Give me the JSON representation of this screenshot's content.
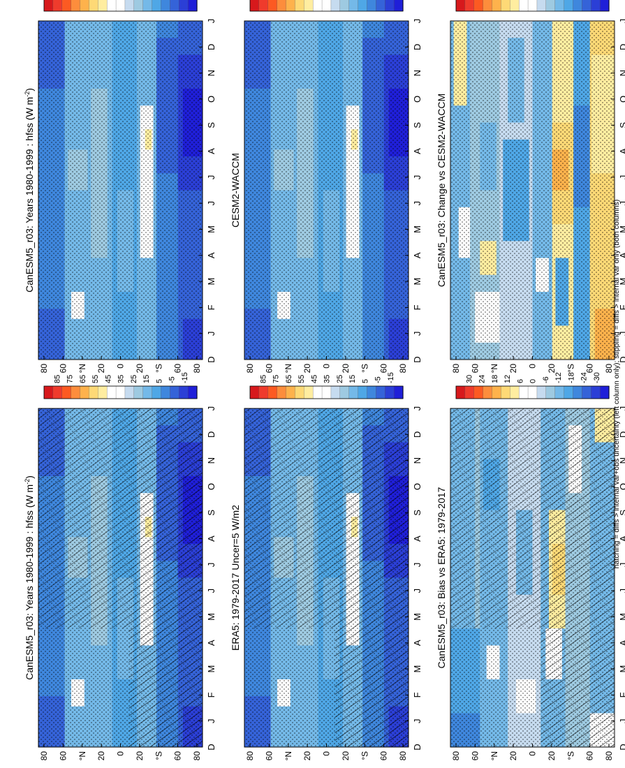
{
  "footnote": "hatching = diffs > internal var+obs uncertainty (left column only); stippling = diffs > internal var only (both columns)",
  "chart_data": [
    {
      "type": "heatmap",
      "title": "CanESM5_r03: Years 1980-1999 : hfss (W m",
      "title_sup": "-2",
      "title_tail": ")",
      "months": [
        "D",
        "J",
        "F",
        "M",
        "A",
        "M",
        "J",
        "J",
        "A",
        "S",
        "O",
        "N",
        "D",
        "J"
      ],
      "lat_labels": [
        "80",
        "60",
        "°N",
        "20",
        "0",
        "20",
        "°S",
        "60",
        "80"
      ],
      "colorbar_labels": [
        "85",
        "75",
        "65",
        "55",
        "45",
        "35",
        "25",
        "15",
        "5",
        "-5",
        "-15"
      ],
      "colors": [
        "#d7191c",
        "#ef3b2c",
        "#fc5a22",
        "#fd8d3c",
        "#feb24c",
        "#fed976",
        "#ffeda0",
        "#ffffff",
        "#ffffff",
        "#c6dbef",
        "#9ecae1",
        "#74b9e8",
        "#4fa7e6",
        "#3f87dd",
        "#3563d8",
        "#2b3fd6",
        "#1f1fd8"
      ],
      "field": "climatology",
      "hatching": true,
      "stippling": true
    },
    {
      "type": "heatmap",
      "title": "ERA5: 1979-2017 Uncer=5 W/m2",
      "months": [
        "D",
        "J",
        "F",
        "M",
        "A",
        "M",
        "J",
        "J",
        "A",
        "S",
        "O",
        "N",
        "D",
        "J"
      ],
      "lat_labels": [
        "80",
        "60",
        "°N",
        "20",
        "0",
        "20",
        "°S",
        "60",
        "80"
      ],
      "colorbar_labels": [
        "85",
        "75",
        "65",
        "55",
        "45",
        "35",
        "25",
        "15",
        "5",
        "-5",
        "-15"
      ],
      "colors": [
        "#d7191c",
        "#ef3b2c",
        "#fc5a22",
        "#fd8d3c",
        "#feb24c",
        "#fed976",
        "#ffeda0",
        "#ffffff",
        "#ffffff",
        "#c6dbef",
        "#9ecae1",
        "#74b9e8",
        "#4fa7e6",
        "#3f87dd",
        "#3563d8",
        "#2b3fd6",
        "#1f1fd8"
      ],
      "field": "climatology",
      "hatching": true,
      "stippling": true
    },
    {
      "type": "heatmap",
      "title": "CanESM5_r03: Bias vs ERA5: 1979-2017",
      "months": [
        "D",
        "J",
        "F",
        "M",
        "A",
        "M",
        "J",
        "J",
        "A",
        "S",
        "O",
        "N",
        "D",
        "J"
      ],
      "lat_labels": [
        "80",
        "60",
        "°N",
        "20",
        "0",
        "20",
        "°S",
        "60",
        "80"
      ],
      "colorbar_labels": [
        "30",
        "24",
        "18",
        "12",
        "6",
        "0",
        "-6",
        "-12",
        "-18",
        "-24",
        "-30"
      ],
      "colors": [
        "#d7191c",
        "#ef3b2c",
        "#fc5a22",
        "#fd8d3c",
        "#feb24c",
        "#fed976",
        "#ffeda0",
        "#ffffff",
        "#ffffff",
        "#c6dbef",
        "#9ecae1",
        "#74b9e8",
        "#4fa7e6",
        "#3f87dd",
        "#3563d8",
        "#2b3fd6",
        "#1f1fd8"
      ],
      "field": "bias",
      "hatching": true,
      "stippling": true
    },
    {
      "type": "heatmap",
      "title": "CanESM5_r03: Years 1980-1999 : hfss (W m",
      "title_sup": "-2",
      "title_tail": ")",
      "months": [
        "D",
        "J",
        "F",
        "M",
        "A",
        "M",
        "J",
        "J",
        "A",
        "S",
        "O",
        "N",
        "D",
        "J"
      ],
      "lat_labels": [
        "80",
        "60",
        "°N",
        "20",
        "0",
        "20",
        "°S",
        "60",
        "80"
      ],
      "colorbar_labels": [
        "85",
        "75",
        "65",
        "55",
        "45",
        "35",
        "25",
        "15",
        "5",
        "-5",
        "-15"
      ],
      "colors": [
        "#d7191c",
        "#ef3b2c",
        "#fc5a22",
        "#fd8d3c",
        "#feb24c",
        "#fed976",
        "#ffeda0",
        "#ffffff",
        "#ffffff",
        "#c6dbef",
        "#9ecae1",
        "#74b9e8",
        "#4fa7e6",
        "#3f87dd",
        "#3563d8",
        "#2b3fd6",
        "#1f1fd8"
      ],
      "field": "climatology",
      "hatching": false,
      "stippling": true
    },
    {
      "type": "heatmap",
      "title": "CESM2-WACCM",
      "months": [
        "D",
        "J",
        "F",
        "M",
        "A",
        "M",
        "J",
        "J",
        "A",
        "S",
        "O",
        "N",
        "D",
        "J"
      ],
      "lat_labels": [
        "80",
        "60",
        "°N",
        "20",
        "0",
        "20",
        "°S",
        "60",
        "80"
      ],
      "colorbar_labels": [
        "85",
        "75",
        "65",
        "55",
        "45",
        "35",
        "25",
        "15",
        "5",
        "-5",
        "-15"
      ],
      "colors": [
        "#d7191c",
        "#ef3b2c",
        "#fc5a22",
        "#fd8d3c",
        "#feb24c",
        "#fed976",
        "#ffeda0",
        "#ffffff",
        "#ffffff",
        "#c6dbef",
        "#9ecae1",
        "#74b9e8",
        "#4fa7e6",
        "#3f87dd",
        "#3563d8",
        "#2b3fd6",
        "#1f1fd8"
      ],
      "field": "climatology",
      "hatching": false,
      "stippling": true
    },
    {
      "type": "heatmap",
      "title": "CanESM5_r03: Change vs CESM2-WACCM",
      "months": [
        "D",
        "J",
        "F",
        "M",
        "A",
        "M",
        "J",
        "J",
        "A",
        "S",
        "O",
        "N",
        "D",
        "J"
      ],
      "lat_labels": [
        "80",
        "60",
        "°N",
        "20",
        "0",
        "20",
        "°S",
        "60",
        "80"
      ],
      "colorbar_labels": [
        "30",
        "24",
        "18",
        "12",
        "6",
        "0",
        "-6",
        "-12",
        "-18",
        "-24",
        "-30"
      ],
      "colors": [
        "#d7191c",
        "#ef3b2c",
        "#fc5a22",
        "#fd8d3c",
        "#feb24c",
        "#fed976",
        "#ffeda0",
        "#ffffff",
        "#ffffff",
        "#c6dbef",
        "#9ecae1",
        "#74b9e8",
        "#4fa7e6",
        "#3f87dd",
        "#3563d8",
        "#2b3fd6",
        "#1f1fd8"
      ],
      "field": "change",
      "hatching": false,
      "stippling": true
    }
  ]
}
